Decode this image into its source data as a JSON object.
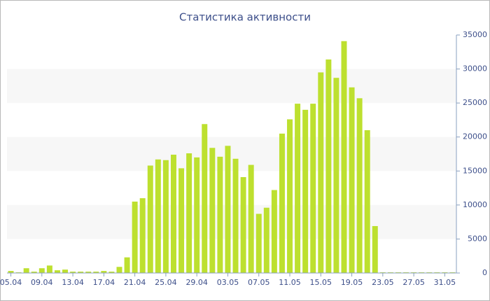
{
  "chart_data": {
    "type": "bar",
    "title": "Статистика активности",
    "categories": [
      "05.04",
      null,
      null,
      null,
      "09.04",
      null,
      null,
      null,
      "13.04",
      null,
      null,
      null,
      "17.04",
      null,
      null,
      null,
      "21.04",
      null,
      null,
      null,
      "25.04",
      null,
      null,
      null,
      "29.04",
      null,
      null,
      null,
      "03.05",
      null,
      null,
      null,
      "07.05",
      null,
      null,
      null,
      "11.05",
      null,
      null,
      null,
      "15.05",
      null,
      null,
      null,
      "19.05",
      null,
      null,
      null,
      "23.05",
      null,
      null,
      null,
      "27.05",
      null,
      null,
      null,
      "31.05",
      null
    ],
    "values": [
      300,
      100,
      700,
      200,
      700,
      1100,
      400,
      500,
      200,
      200,
      200,
      200,
      300,
      200,
      900,
      2300,
      10500,
      11000,
      15800,
      16700,
      16600,
      17400,
      15400,
      17600,
      17000,
      21900,
      18400,
      17100,
      18700,
      16800,
      14100,
      15900,
      8700,
      9600,
      12200,
      20500,
      22600,
      24900,
      24000,
      24900,
      29500,
      31400,
      28700,
      34100,
      27300,
      25700,
      21000,
      6900,
      100,
      100,
      100,
      100,
      100,
      100,
      100,
      100,
      100,
      100
    ],
    "color": "#bde02f",
    "ylim": [
      0,
      35000
    ],
    "yticks": [
      0,
      5000,
      10000,
      15000,
      20000,
      25000,
      30000,
      35000
    ],
    "grid": "bands",
    "y_axis_position": "right"
  }
}
